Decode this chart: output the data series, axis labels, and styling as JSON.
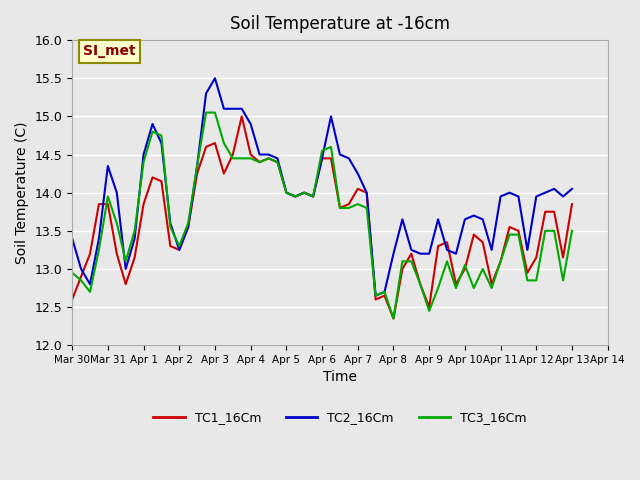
{
  "title": "Soil Temperature at -16cm",
  "xlabel": "Time",
  "ylabel": "Soil Temperature (C)",
  "ylim": [
    12.0,
    16.0
  ],
  "xlim": [
    0,
    15
  ],
  "annotation_text": "SI_met",
  "background_color": "#e8e8e8",
  "plot_bg_color": "#e8e8e8",
  "series": {
    "TC1_16Cm": {
      "color": "#cc0000",
      "x": [
        0,
        0.25,
        0.5,
        0.75,
        1,
        1.25,
        1.5,
        1.75,
        2,
        2.25,
        2.5,
        2.75,
        3,
        3.25,
        3.5,
        3.75,
        4,
        4.25,
        4.5,
        4.75,
        5,
        5.25,
        5.5,
        5.75,
        6,
        6.25,
        6.5,
        6.75,
        7,
        7.25,
        7.5,
        7.75,
        8,
        8.25,
        8.5,
        8.75,
        9,
        9.25,
        9.5,
        9.75,
        10,
        10.25,
        10.5,
        10.75,
        11,
        11.25,
        11.5,
        11.75,
        12,
        12.25,
        12.5,
        12.75,
        13,
        13.25,
        13.5,
        13.75,
        14
      ],
      "y": [
        12.6,
        12.9,
        13.2,
        13.85,
        13.85,
        13.2,
        12.8,
        13.15,
        13.85,
        14.2,
        14.15,
        13.3,
        13.25,
        13.55,
        14.25,
        14.6,
        14.65,
        14.25,
        14.5,
        15.0,
        14.5,
        14.4,
        14.45,
        14.4,
        14.0,
        13.95,
        14.0,
        13.95,
        14.45,
        14.45,
        13.8,
        13.85,
        14.05,
        14.0,
        12.6,
        12.65,
        12.35,
        13.0,
        13.2,
        12.8,
        12.5,
        13.3,
        13.35,
        12.8,
        13.0,
        13.45,
        13.35,
        12.8,
        13.1,
        13.55,
        13.5,
        12.95,
        13.15,
        13.75,
        13.75,
        13.15,
        13.85
      ]
    },
    "TC2_16Cm": {
      "color": "#0000cc",
      "x": [
        0,
        0.25,
        0.5,
        0.75,
        1,
        1.25,
        1.5,
        1.75,
        2,
        2.25,
        2.5,
        2.75,
        3,
        3.25,
        3.5,
        3.75,
        4,
        4.25,
        4.5,
        4.75,
        5,
        5.25,
        5.5,
        5.75,
        6,
        6.25,
        6.5,
        6.75,
        7,
        7.25,
        7.5,
        7.75,
        8,
        8.25,
        8.5,
        8.75,
        9,
        9.25,
        9.5,
        9.75,
        10,
        10.25,
        10.5,
        10.75,
        11,
        11.25,
        11.5,
        11.75,
        12,
        12.25,
        12.5,
        12.75,
        13,
        13.25,
        13.5,
        13.75,
        14
      ],
      "y": [
        13.4,
        13.0,
        12.8,
        13.4,
        14.35,
        14.0,
        13.0,
        13.4,
        14.5,
        14.9,
        14.65,
        13.6,
        13.25,
        13.55,
        14.35,
        15.3,
        15.5,
        15.1,
        15.1,
        15.1,
        14.9,
        14.5,
        14.5,
        14.45,
        14.0,
        13.95,
        14.0,
        13.95,
        14.45,
        15.0,
        14.5,
        14.45,
        14.25,
        14.0,
        12.65,
        12.7,
        13.2,
        13.65,
        13.25,
        13.2,
        13.2,
        13.65,
        13.25,
        13.2,
        13.65,
        13.7,
        13.65,
        13.25,
        13.95,
        14.0,
        13.95,
        13.25,
        13.95,
        14.0,
        14.05,
        13.95,
        14.05
      ]
    },
    "TC3_16Cm": {
      "color": "#00aa00",
      "x": [
        0,
        0.25,
        0.5,
        0.75,
        1,
        1.25,
        1.5,
        1.75,
        2,
        2.25,
        2.5,
        2.75,
        3,
        3.25,
        3.5,
        3.75,
        4,
        4.25,
        4.5,
        4.75,
        5,
        5.25,
        5.5,
        5.75,
        6,
        6.25,
        6.5,
        6.75,
        7,
        7.25,
        7.5,
        7.75,
        8,
        8.25,
        8.5,
        8.75,
        9,
        9.25,
        9.5,
        9.75,
        10,
        10.25,
        10.5,
        10.75,
        11,
        11.25,
        11.5,
        11.75,
        12,
        12.25,
        12.5,
        12.75,
        13,
        13.25,
        13.5,
        13.75,
        14
      ],
      "y": [
        12.95,
        12.85,
        12.7,
        13.25,
        13.95,
        13.6,
        13.1,
        13.5,
        14.4,
        14.8,
        14.75,
        13.55,
        13.3,
        13.6,
        14.35,
        15.05,
        15.05,
        14.65,
        14.45,
        14.45,
        14.45,
        14.4,
        14.45,
        14.4,
        14.0,
        13.95,
        14.0,
        13.95,
        14.55,
        14.6,
        13.8,
        13.8,
        13.85,
        13.8,
        12.65,
        12.7,
        12.35,
        13.1,
        13.1,
        12.8,
        12.45,
        12.75,
        13.1,
        12.75,
        13.05,
        12.75,
        13.0,
        12.75,
        13.1,
        13.45,
        13.45,
        12.85,
        12.85,
        13.5,
        13.5,
        12.85,
        13.5
      ]
    }
  },
  "xtick_labels": [
    "Mar 30",
    "Mar 31",
    "Apr 1",
    "Apr 2",
    "Apr 3",
    "Apr 4",
    "Apr 5",
    "Apr 6",
    "Apr 7",
    "Apr 8",
    "Apr 9",
    "Apr 10",
    "Apr 11",
    "Apr 12",
    "Apr 13",
    "Apr 14"
  ],
  "xtick_positions": [
    0,
    1,
    2,
    3,
    4,
    5,
    6,
    7,
    8,
    9,
    10,
    11,
    12,
    13,
    14,
    15
  ],
  "ytick_labels": [
    "12.0",
    "12.5",
    "13.0",
    "13.5",
    "14.0",
    "14.5",
    "15.0",
    "15.5",
    "16.0"
  ],
  "ytick_positions": [
    12.0,
    12.5,
    13.0,
    13.5,
    14.0,
    14.5,
    15.0,
    15.5,
    16.0
  ],
  "legend_labels": [
    "TC1_16Cm",
    "TC2_16Cm",
    "TC3_16Cm"
  ]
}
